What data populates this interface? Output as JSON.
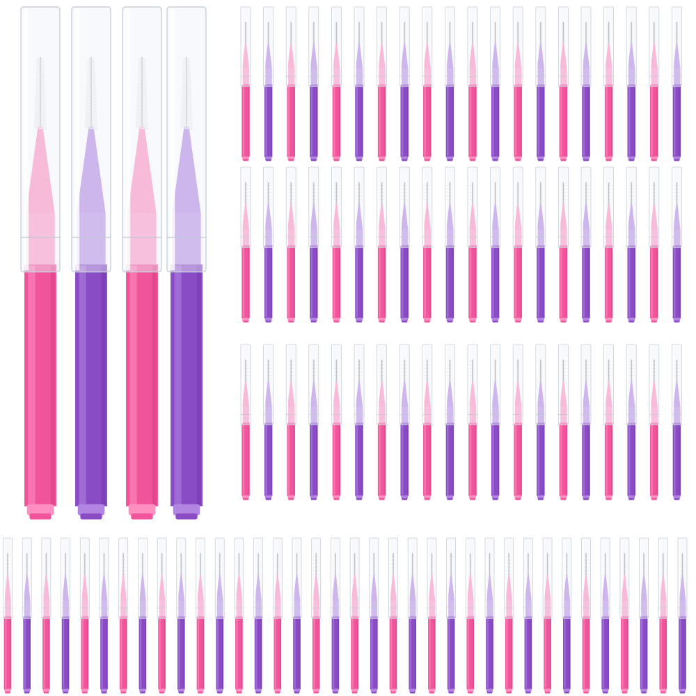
{
  "product_photo": {
    "background_color": "#ffffff",
    "brush_colors": {
      "pink": "#f0559b",
      "pink_light": "#ff8fc0",
      "pink_dark": "#c83273",
      "purple": "#8a4cc4",
      "purple_light": "#b285e2",
      "purple_dark": "#6a2fa3",
      "cap_tint": "#eef2f8",
      "bristle": "#f2f2f2",
      "wire": "#8a8a8a"
    },
    "large_brushes": {
      "count": 4,
      "color_pattern": [
        "pink",
        "purple",
        "pink",
        "purple"
      ]
    },
    "small_brush_grid": {
      "rows": 3,
      "brushes_per_row": 20,
      "color_pattern": [
        "pink",
        "purple"
      ]
    },
    "bottom_row": {
      "count": 36,
      "color_pattern": [
        "pink",
        "purple"
      ]
    }
  }
}
